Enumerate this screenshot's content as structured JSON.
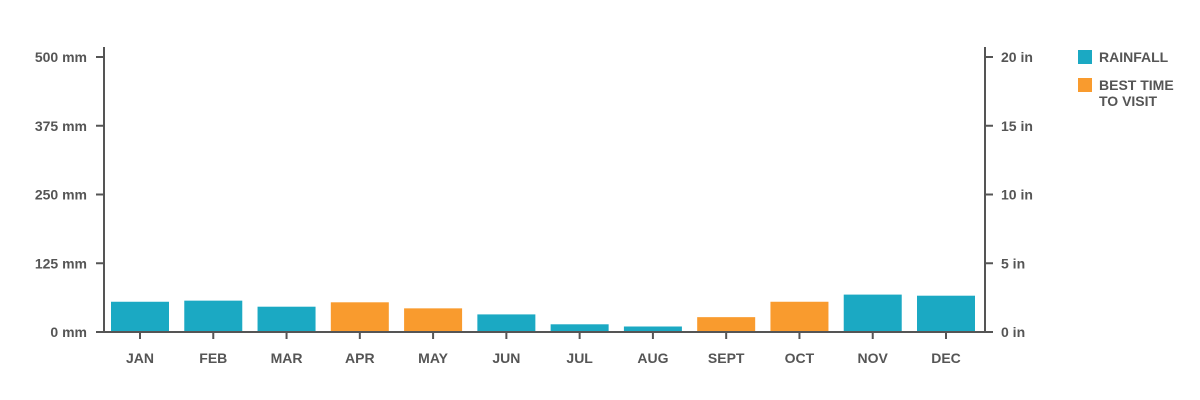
{
  "chart_data": {
    "type": "bar",
    "categories": [
      "JAN",
      "FEB",
      "MAR",
      "APR",
      "MAY",
      "JUN",
      "JUL",
      "AUG",
      "SEPT",
      "OCT",
      "NOV",
      "DEC"
    ],
    "values": [
      55,
      57,
      46,
      54,
      43,
      32,
      14,
      10,
      27,
      55,
      68,
      66
    ],
    "best_time": [
      false,
      false,
      false,
      true,
      true,
      false,
      false,
      false,
      true,
      true,
      false,
      false
    ],
    "ylim": [
      0,
      500
    ],
    "y_ticks": [
      0,
      125,
      250,
      375,
      500
    ],
    "y_tick_labels": [
      "0 mm",
      "125 mm",
      "250 mm",
      "375 mm",
      "500 mm"
    ],
    "y2_ticks_in": [
      0,
      5,
      10,
      15,
      20
    ],
    "y2_tick_labels": [
      "0 in",
      "5 in",
      "10 in",
      "15 in",
      "20 in"
    ],
    "grid": false,
    "legend_position": "top-right",
    "legend": [
      {
        "label": "RAINFALL",
        "color": "#1ba9c3"
      },
      {
        "label": "BEST TIME TO VISIT",
        "label_lines": [
          "BEST TIME",
          "TO VISIT"
        ],
        "color": "#f99b2e"
      }
    ],
    "colors": {
      "rainfall": "#1ba9c3",
      "best_time": "#f99b2e",
      "axis": "#555555"
    }
  }
}
